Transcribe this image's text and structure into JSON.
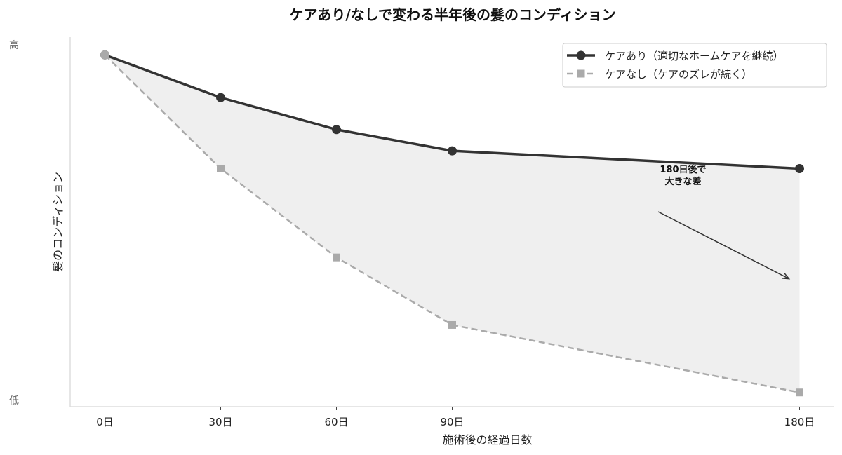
{
  "chart_data": {
    "type": "line",
    "title": "ケアあり/なしで変わる半年後の髪のコンディション",
    "xlabel": "施術後の経過日数",
    "ylabel": "髪のコンディション",
    "x": [
      0,
      30,
      60,
      90,
      180
    ],
    "x_tick_labels": [
      "0日",
      "30日",
      "60日",
      "90日",
      "180日"
    ],
    "y_tick_labels": [
      {
        "value": 100,
        "label": "高"
      },
      {
        "value": 0,
        "label": "低"
      }
    ],
    "ylim": [
      -2,
      102
    ],
    "xlim": [
      -9,
      189
    ],
    "grid": false,
    "legend_position": "upper right",
    "series": [
      {
        "name": "ケアあり（適切なホームケアを継続）",
        "values": [
          97,
          85,
          76,
          70,
          65
        ],
        "color": "#333333",
        "style": "solid",
        "marker": "circle"
      },
      {
        "name": "ケアなし（ケアのズレが続く）",
        "values": [
          97,
          65,
          40,
          21,
          2
        ],
        "color": "#aaaaaa",
        "style": "dashed",
        "marker": "square"
      }
    ],
    "fill_between": {
      "color": "#efefef",
      "between": [
        "ケアあり（適切なホームケアを継続）",
        "ケアなし（ケアのズレが続く）"
      ]
    },
    "annotations": [
      {
        "text_lines": [
          "180日後で",
          "大きな差"
        ],
        "text_x": 150,
        "text_y": 60,
        "arrow_to_x": 178,
        "arrow_to_y": 34
      }
    ]
  }
}
